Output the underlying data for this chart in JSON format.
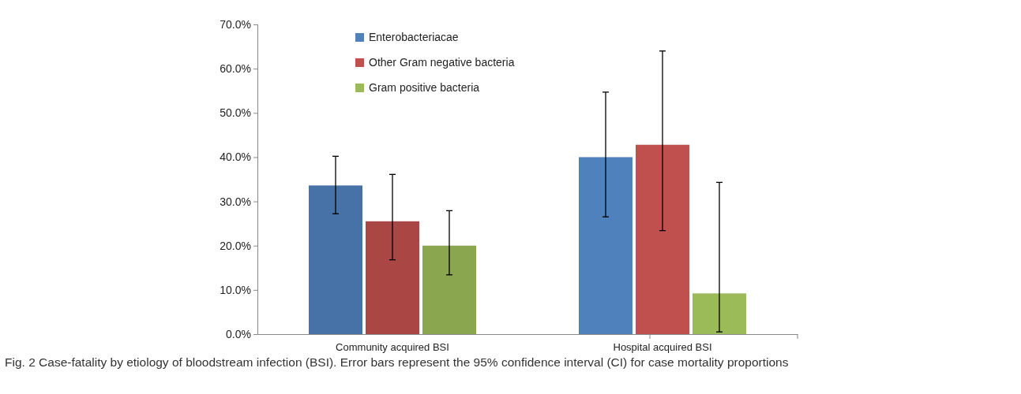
{
  "chart_data": {
    "type": "bar",
    "categories": [
      "Community acquired BSI",
      "Hospital acquired BSI"
    ],
    "series": [
      {
        "name": "Enterobacteriacae",
        "color": "#4f81bd",
        "colors": [
          "#4672a8",
          "#4f81bd"
        ],
        "values": [
          33.6,
          40.0
        ],
        "errors": [
          [
            27.2,
            40.2
          ],
          [
            26.5,
            54.7
          ]
        ]
      },
      {
        "name": "Other Gram negative bacteria",
        "color": "#c0504d",
        "colors": [
          "#aa4644",
          "#c0504d"
        ],
        "values": [
          25.5,
          42.8
        ],
        "errors": [
          [
            16.8,
            36.1
          ],
          [
            23.4,
            64.0
          ]
        ]
      },
      {
        "name": "Gram positive bacteria",
        "color": "#9bbb59",
        "colors": [
          "#8aa64f",
          "#9bbb59"
        ],
        "values": [
          20.0,
          9.2
        ],
        "errors": [
          [
            13.4,
            27.9
          ],
          [
            0.5,
            34.3
          ]
        ]
      }
    ],
    "ylim": [
      0,
      70
    ],
    "yticks": [
      {
        "value": 0,
        "label": "0.0%"
      },
      {
        "value": 10,
        "label": "10.0%"
      },
      {
        "value": 20,
        "label": "20.0%"
      },
      {
        "value": 30,
        "label": "30.0%"
      },
      {
        "value": 40,
        "label": "40.0%"
      },
      {
        "value": 50,
        "label": "50.0%"
      },
      {
        "value": 60,
        "label": "60.0%"
      },
      {
        "value": 70,
        "label": "70.0%"
      }
    ],
    "legend": "top left",
    "annotations": [
      "Fig. 2 Case-fatality by etiology of bloodstream infection (BSI). Error bars represent the 95% confidence interval (CI) for case mortality proportions"
    ]
  }
}
